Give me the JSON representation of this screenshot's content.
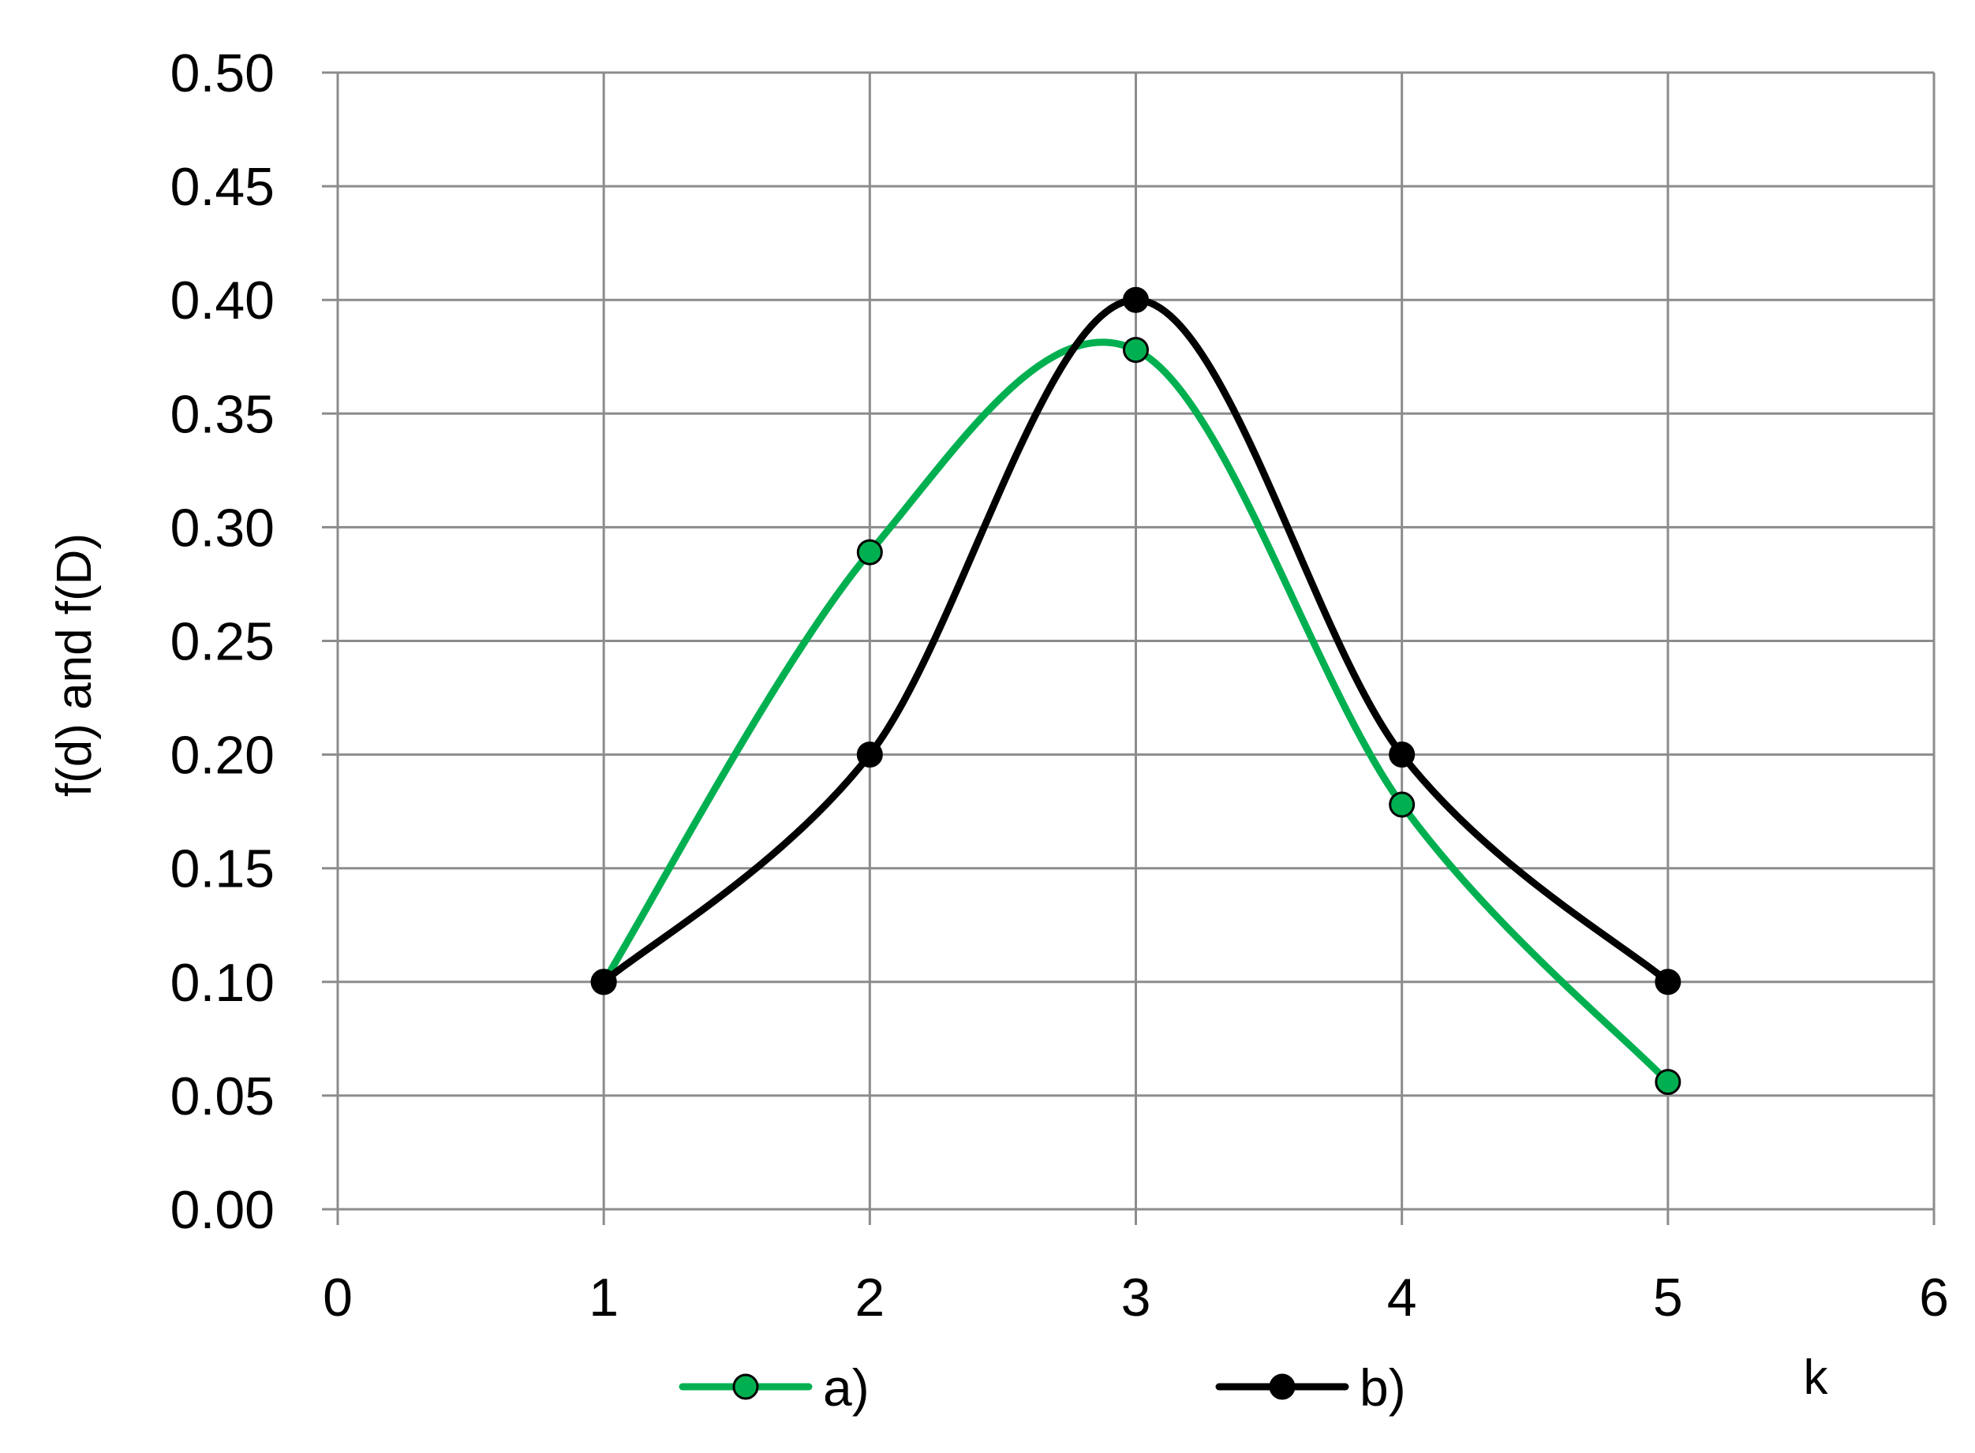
{
  "chart_data": {
    "type": "line",
    "smooth": true,
    "xlabel": "k",
    "ylabel": "f(d) and f(D)",
    "xlim": [
      0,
      6
    ],
    "ylim": [
      0,
      0.5
    ],
    "xticks": [
      "0",
      "1",
      "2",
      "3",
      "4",
      "5",
      "6"
    ],
    "yticks": [
      "0.00",
      "0.05",
      "0.10",
      "0.15",
      "0.20",
      "0.25",
      "0.30",
      "0.35",
      "0.40",
      "0.45",
      "0.50"
    ],
    "grid": true,
    "legend_position": "bottom",
    "series": [
      {
        "name": "a)",
        "color": "#00b050",
        "marker_color": "#00b050",
        "x": [
          1,
          2,
          3,
          4,
          5
        ],
        "y": [
          0.1,
          0.289,
          0.378,
          0.178,
          0.056
        ]
      },
      {
        "name": "b)",
        "color": "#000000",
        "marker_color": "#000000",
        "x": [
          1,
          2,
          3,
          4,
          5
        ],
        "y": [
          0.1,
          0.2,
          0.4,
          0.2,
          0.1
        ]
      }
    ]
  }
}
